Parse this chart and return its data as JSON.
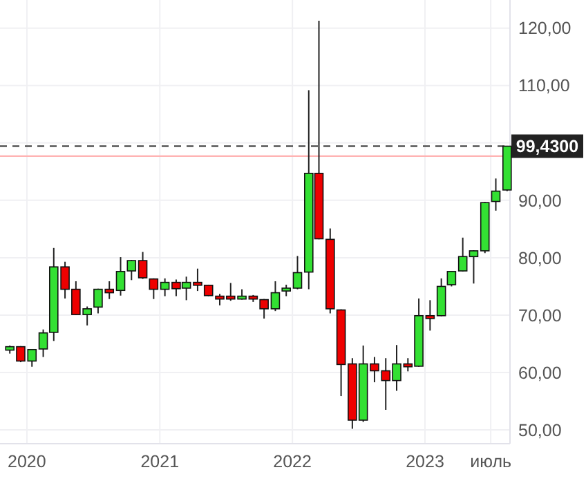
{
  "chart_data": {
    "type": "candlestick",
    "x": [
      "2019-11-15",
      "2019-12-15",
      "2020-01-15",
      "2020-02-15",
      "2020-03-15",
      "2020-04-15",
      "2020-05-15",
      "2020-06-15",
      "2020-07-15",
      "2020-08-15",
      "2020-09-15",
      "2020-10-15",
      "2020-11-15",
      "2020-12-15",
      "2021-01-15",
      "2021-02-15",
      "2021-03-15",
      "2021-04-15",
      "2021-05-15",
      "2021-06-15",
      "2021-07-15",
      "2021-08-15",
      "2021-09-15",
      "2021-10-15",
      "2021-11-15",
      "2021-12-15",
      "2022-01-15",
      "2022-02-15",
      "2022-03-15",
      "2022-04-15",
      "2022-05-15",
      "2022-06-15",
      "2022-07-15",
      "2022-08-15",
      "2022-09-15",
      "2022-10-15",
      "2022-11-15",
      "2022-12-15",
      "2023-01-15",
      "2023-02-15",
      "2023-03-15",
      "2023-04-15",
      "2023-05-15",
      "2023-06-15",
      "2023-07-15",
      "2023-08-15"
    ],
    "ohlc": [
      [
        63.9,
        64.7,
        63.3,
        64.5
      ],
      [
        64.5,
        64.6,
        61.8,
        62.0
      ],
      [
        62.0,
        64.0,
        61.0,
        64.0
      ],
      [
        64.1,
        67.5,
        62.7,
        66.9
      ],
      [
        67.0,
        81.7,
        65.5,
        78.4
      ],
      [
        78.4,
        79.3,
        72.9,
        74.5
      ],
      [
        74.5,
        75.9,
        70.0,
        70.1
      ],
      [
        70.1,
        71.5,
        68.2,
        71.1
      ],
      [
        71.4,
        74.6,
        70.3,
        74.5
      ],
      [
        74.5,
        75.9,
        72.8,
        73.9
      ],
      [
        74.3,
        80.1,
        73.4,
        77.6
      ],
      [
        77.7,
        79.6,
        76.1,
        79.5
      ],
      [
        79.5,
        81.0,
        76.3,
        76.5
      ],
      [
        76.3,
        76.4,
        72.8,
        74.5
      ],
      [
        74.5,
        76.4,
        73.3,
        75.7
      ],
      [
        75.7,
        76.2,
        73.3,
        74.6
      ],
      [
        74.7,
        76.7,
        72.6,
        75.7
      ],
      [
        75.7,
        78.1,
        74.2,
        75.2
      ],
      [
        75.2,
        75.3,
        73.3,
        73.4
      ],
      [
        73.3,
        73.7,
        71.7,
        72.8
      ],
      [
        73.3,
        75.6,
        72.5,
        72.8
      ],
      [
        72.8,
        74.5,
        72.7,
        73.3
      ],
      [
        73.3,
        73.5,
        72.3,
        72.8
      ],
      [
        72.7,
        72.8,
        69.4,
        71.1
      ],
      [
        71.1,
        75.9,
        70.7,
        73.9
      ],
      [
        74.2,
        75.3,
        73.3,
        74.7
      ],
      [
        74.7,
        80.3,
        74.5,
        77.4
      ],
      [
        77.5,
        109.2,
        74.5,
        94.7
      ],
      [
        94.7,
        121.3,
        83.2,
        83.3
      ],
      [
        83.2,
        85.1,
        70.3,
        71.1
      ],
      [
        70.9,
        71.0,
        55.9,
        61.4
      ],
      [
        61.5,
        62.5,
        50.2,
        51.7
      ],
      [
        51.7,
        64.7,
        51.4,
        61.5
      ],
      [
        61.5,
        62.7,
        58.3,
        60.3
      ],
      [
        60.3,
        62.5,
        53.5,
        58.6
      ],
      [
        58.6,
        64.8,
        56.8,
        61.5
      ],
      [
        61.5,
        62.5,
        60.2,
        61.0
      ],
      [
        61.1,
        72.9,
        61.0,
        69.9
      ],
      [
        69.9,
        72.6,
        67.3,
        69.4
      ],
      [
        69.9,
        76.4,
        69.8,
        75.0
      ],
      [
        75.3,
        77.7,
        75.0,
        77.6
      ],
      [
        77.7,
        83.5,
        77.6,
        80.2
      ],
      [
        80.2,
        81.3,
        75.5,
        81.2
      ],
      [
        81.2,
        89.7,
        80.8,
        89.6
      ],
      [
        89.8,
        93.8,
        88.2,
        91.6
      ],
      [
        91.8,
        99.5,
        91.6,
        99.43
      ]
    ],
    "xlim": [
      "2019-10-19",
      "2023-08-23"
    ],
    "xticks": [
      {
        "value": "2020-01",
        "label": "2020"
      },
      {
        "value": "2021-01",
        "label": "2021"
      },
      {
        "value": "2022-01",
        "label": "2022"
      },
      {
        "value": "2023-01",
        "label": "2023"
      },
      {
        "value": "2023-07",
        "label": "июль"
      }
    ],
    "ylim": [
      47.6,
      124.9
    ],
    "yticks": [
      {
        "value": 50,
        "label": "50,00"
      },
      {
        "value": 60,
        "label": "60,00"
      },
      {
        "value": 70,
        "label": "70,00"
      },
      {
        "value": 80,
        "label": "80,00"
      },
      {
        "value": 90,
        "label": "90,00"
      },
      {
        "value": 100,
        "label": null
      },
      {
        "value": 110,
        "label": "110,00"
      },
      {
        "value": 120,
        "label": "120,00"
      }
    ],
    "ref_lines": [
      {
        "axis": "y",
        "value": 97.7,
        "color": "#ffb3b3",
        "line_style": "solid"
      },
      {
        "axis": "y",
        "value": 99.43,
        "label": "99,4300",
        "color": "#555555",
        "line_style": "dashed"
      }
    ],
    "grid": true
  }
}
